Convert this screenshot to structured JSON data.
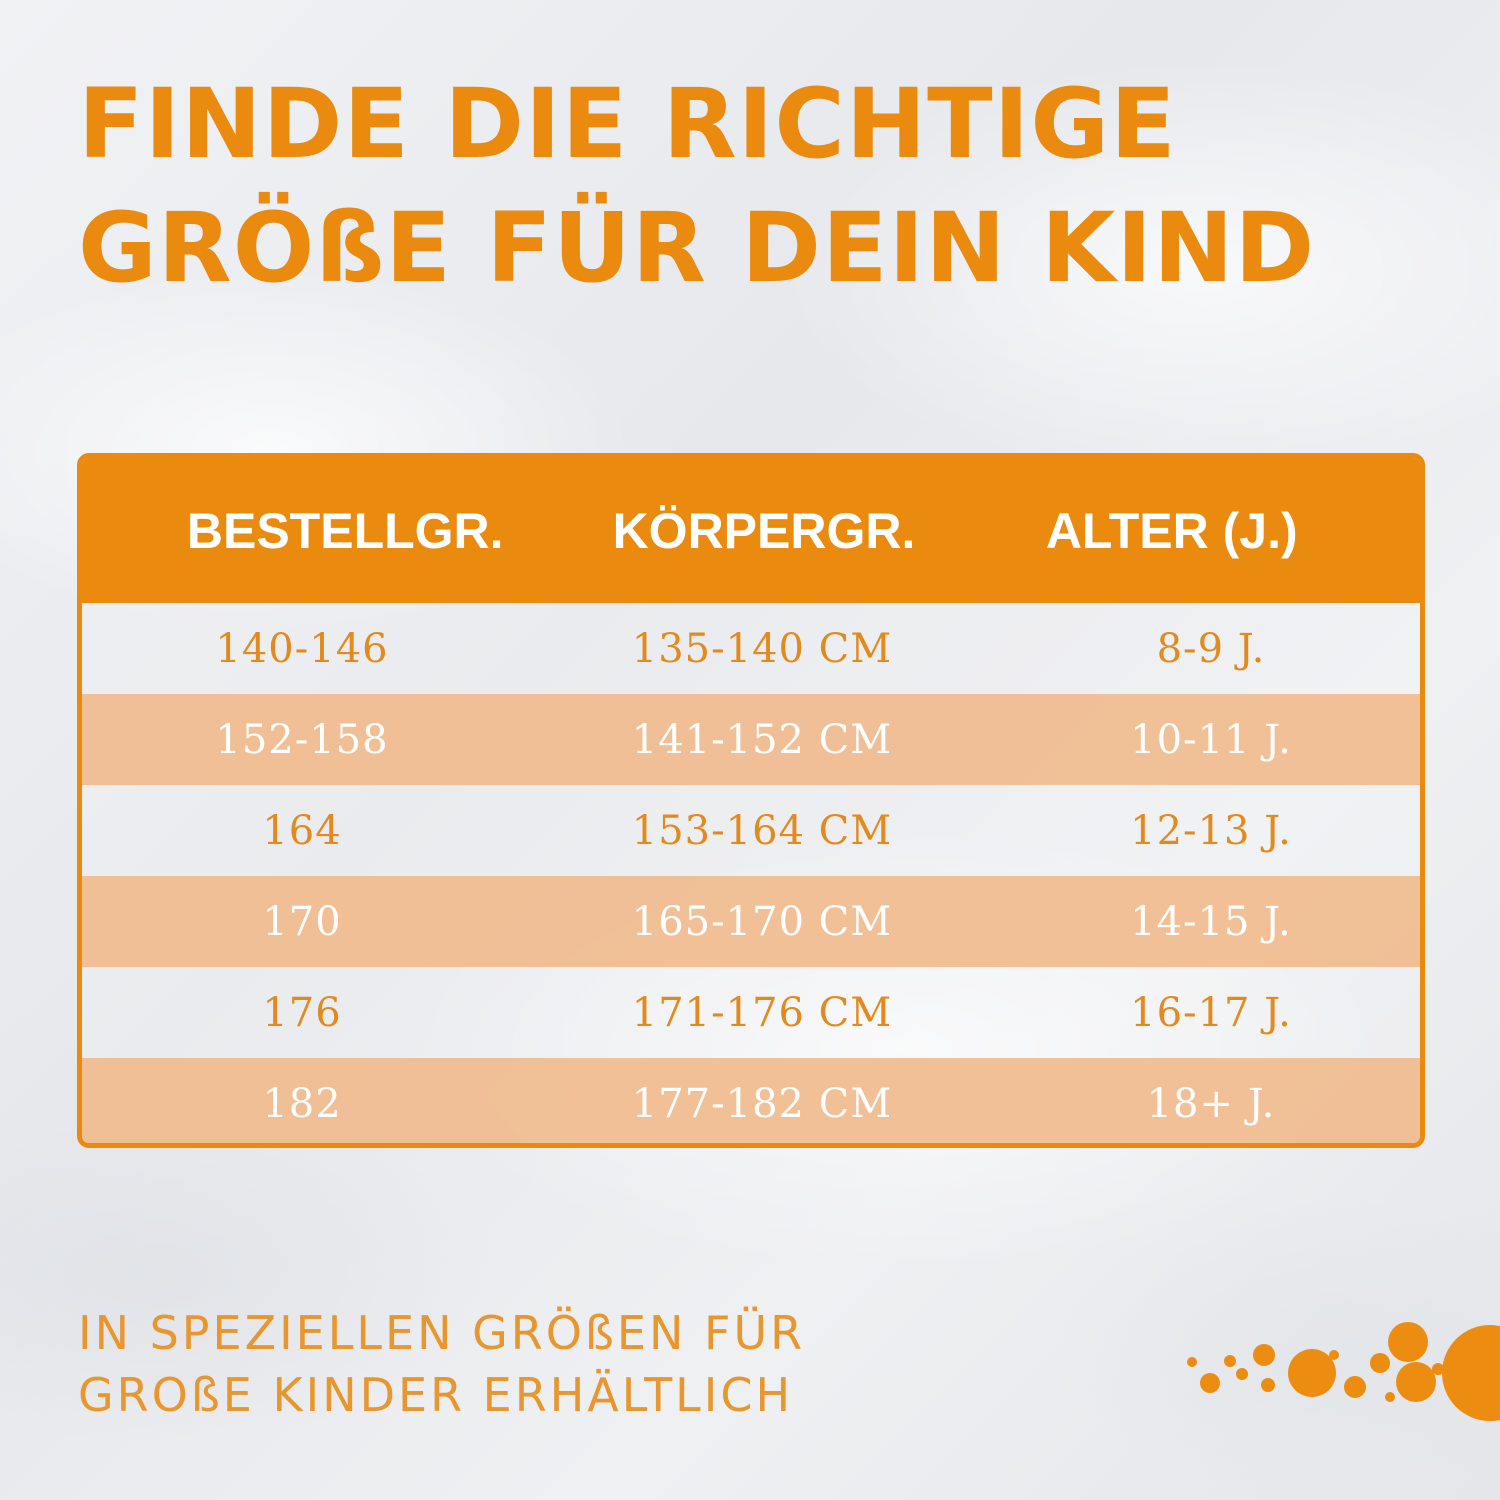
{
  "title": {
    "line1": "FINDE DIE RICHTIGE",
    "line2": "GRÖßE FÜR DEIN KIND"
  },
  "table": {
    "headers": [
      "BESTELLGR.",
      "KÖRPERGR.",
      "ALTER (J.)"
    ],
    "rows": [
      [
        "140-146",
        "135-140 CM",
        "8-9 J."
      ],
      [
        "152-158",
        "141-152 CM",
        "10-11 J."
      ],
      [
        "164",
        "153-164 CM",
        "12-13 J."
      ],
      [
        "170",
        "165-170 CM",
        "14-15 J."
      ],
      [
        "176",
        "171-176 CM",
        "16-17 J."
      ],
      [
        "182",
        "177-182 CM",
        "18+ J."
      ]
    ]
  },
  "footer": {
    "line1": "IN SPEZIELLEN GRÖßEN FÜR",
    "line2": "GROßE KINDER ERHÄLTLICH"
  },
  "colors": {
    "accent": "#ea8a0f",
    "row_alt": "#f0bd91",
    "text_orange": "#e38a1e"
  },
  "icons": {
    "decoration": "orange-bubbles-decoration"
  }
}
